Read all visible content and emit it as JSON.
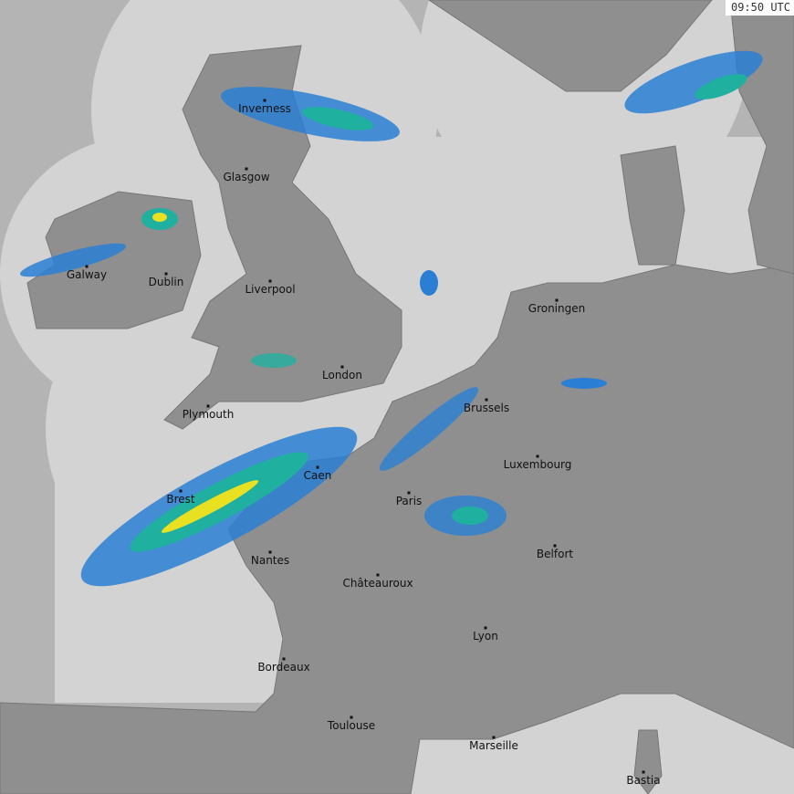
{
  "timestamp": "09:50 UTC",
  "colors": {
    "sea_outside": "#b4b4b4",
    "coverage": "#d3d3d3",
    "land": "#8f8f8f",
    "rain_light": "#2a7fd4",
    "rain_mid": "#20b0a0",
    "rain_heavy": "#e8e020"
  },
  "cities": [
    {
      "name": "Inverness"
    },
    {
      "name": "Glasgow"
    },
    {
      "name": "Galway"
    },
    {
      "name": "Dublin"
    },
    {
      "name": "Liverpool"
    },
    {
      "name": "London"
    },
    {
      "name": "Plymouth"
    },
    {
      "name": "Brest"
    },
    {
      "name": "Caen"
    },
    {
      "name": "Nantes"
    },
    {
      "name": "Châteauroux"
    },
    {
      "name": "Bordeaux"
    },
    {
      "name": "Toulouse"
    },
    {
      "name": "Marseille"
    },
    {
      "name": "Lyon"
    },
    {
      "name": "Paris"
    },
    {
      "name": "Brussels"
    },
    {
      "name": "Luxembourg"
    },
    {
      "name": "Belfort"
    },
    {
      "name": "Groningen"
    },
    {
      "name": "Bastia"
    }
  ]
}
